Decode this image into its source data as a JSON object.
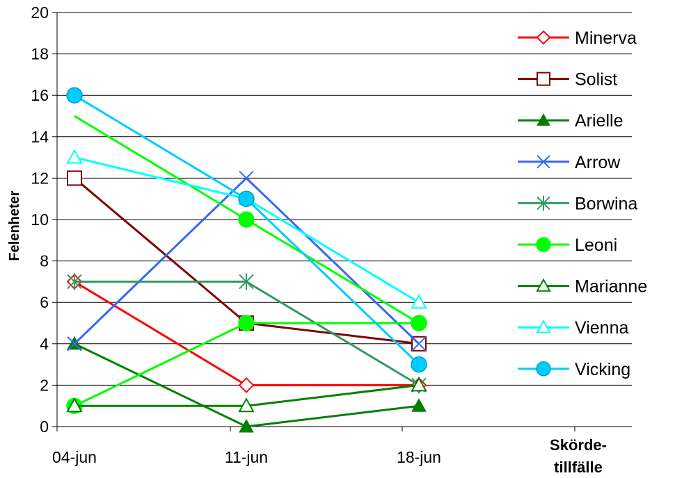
{
  "chart_data": {
    "type": "line",
    "categories": [
      "04-jun",
      "11-jun",
      "18-jun"
    ],
    "extra_category_label_lines": [
      "Skörde-",
      "tillfälle"
    ],
    "ylabel": "Felenheter",
    "ylim": [
      0,
      20
    ],
    "yticks": [
      "0",
      "2",
      "4",
      "6",
      "8",
      "10",
      "12",
      "14",
      "16",
      "18",
      "20"
    ],
    "grid": true,
    "legend_position": "right",
    "series": [
      {
        "name": "Minerva",
        "values": [
          7,
          2,
          2
        ],
        "color": "#ff0000",
        "marker": "diamond-open"
      },
      {
        "name": "Solist",
        "values": [
          12,
          5,
          4
        ],
        "color": "#800000",
        "marker": "square-open"
      },
      {
        "name": "Arielle",
        "values": [
          4,
          0,
          1
        ],
        "color": "#008000",
        "marker": "triangle-filled"
      },
      {
        "name": "Arrow",
        "values": [
          4,
          12,
          4
        ],
        "color": "#3366ff",
        "marker": "x"
      },
      {
        "name": "Borwina",
        "values": [
          7,
          7,
          2
        ],
        "color": "#339966",
        "marker": "star"
      },
      {
        "name": "Leoni",
        "values": [
          15,
          10,
          5
        ],
        "color": "#00ff00",
        "marker": "circle-filled",
        "first_marker_visible": false
      },
      {
        "name": "Leoni",
        "values": [
          1,
          5,
          5
        ],
        "color": "#00ff00",
        "marker": "circle-filled"
      },
      {
        "name": "Marianne",
        "values": [
          1,
          1,
          2
        ],
        "color": "#008000",
        "marker": "triangle-open"
      },
      {
        "name": "Vienna",
        "values": [
          13,
          11,
          6
        ],
        "color": "#00ffff",
        "marker": "triangle-open"
      },
      {
        "name": "Vicking",
        "values": [
          16,
          11,
          3
        ],
        "color": "#00ccff",
        "marker": "circle-filled"
      }
    ],
    "legend": [
      {
        "name": "Minerva",
        "color": "#ff0000",
        "marker": "diamond-open"
      },
      {
        "name": "Solist",
        "color": "#800000",
        "marker": "square-open"
      },
      {
        "name": "Arielle",
        "color": "#008000",
        "marker": "triangle-filled"
      },
      {
        "name": "Arrow",
        "color": "#3366ff",
        "marker": "x"
      },
      {
        "name": "Borwina",
        "color": "#339966",
        "marker": "star"
      },
      {
        "name": "Leoni",
        "color": "#00ff00",
        "marker": "circle-filled"
      },
      {
        "name": "Marianne",
        "color": "#008000",
        "marker": "triangle-open"
      },
      {
        "name": "Vienna",
        "color": "#00ffff",
        "marker": "triangle-open"
      },
      {
        "name": "Vicking",
        "color": "#00ccff",
        "marker": "circle-filled"
      }
    ]
  }
}
